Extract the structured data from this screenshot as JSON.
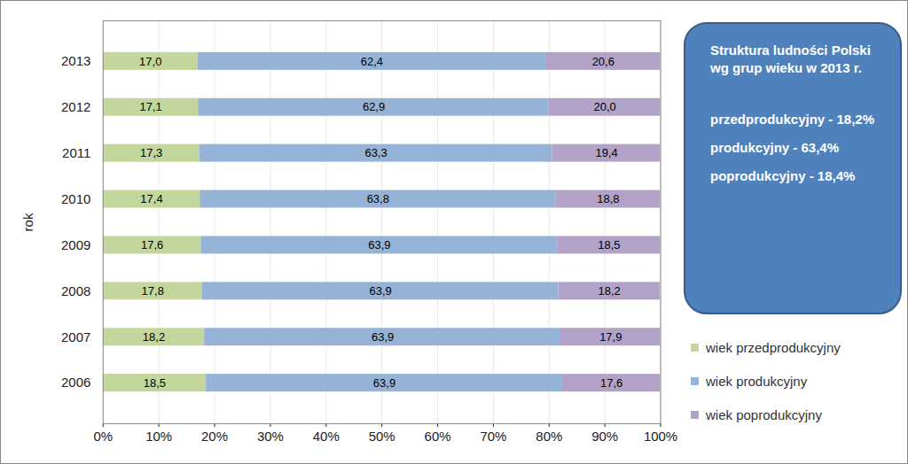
{
  "chart_data": {
    "type": "bar",
    "orientation": "horizontal",
    "stacked": true,
    "data_labels": true,
    "grid": true,
    "legend": "right",
    "ylabel": "rok",
    "categories": [
      "2013",
      "2012",
      "2011",
      "2010",
      "2009",
      "2008",
      "2007",
      "2006"
    ],
    "series": [
      {
        "name": "wiek przedprodukcyjny",
        "color": "#c3d69b",
        "values": [
          17.0,
          17.1,
          17.3,
          17.4,
          17.6,
          17.8,
          18.2,
          18.5
        ],
        "value_labels": [
          "17,0",
          "17,1",
          "17,3",
          "17,4",
          "17,6",
          "17,8",
          "18,2",
          "18,5"
        ]
      },
      {
        "name": "wiek produkcyjny",
        "color": "#95b3d7",
        "values": [
          62.4,
          62.9,
          63.3,
          63.8,
          63.9,
          63.9,
          63.9,
          63.9
        ],
        "value_labels": [
          "62,4",
          "62,9",
          "63,3",
          "63,8",
          "63,9",
          "63,9",
          "63,9",
          "63,9"
        ]
      },
      {
        "name": "wiek poprodukcyjny",
        "color": "#b3a2c7",
        "values": [
          20.6,
          20.0,
          19.4,
          18.8,
          18.5,
          18.2,
          17.9,
          17.6
        ],
        "value_labels": [
          "20,6",
          "20,0",
          "19,4",
          "18,8",
          "18,5",
          "18,2",
          "17,9",
          "17,6"
        ]
      }
    ],
    "xlim": [
      0,
      100
    ],
    "xticks": [
      {
        "value": 0,
        "label": "0%"
      },
      {
        "value": 10,
        "label": "10%"
      },
      {
        "value": 20,
        "label": "20%"
      },
      {
        "value": 30,
        "label": "30%"
      },
      {
        "value": 40,
        "label": "40%"
      },
      {
        "value": 50,
        "label": "50%"
      },
      {
        "value": 60,
        "label": "60%"
      },
      {
        "value": 70,
        "label": "70%"
      },
      {
        "value": 80,
        "label": "80%"
      },
      {
        "value": 90,
        "label": "90%"
      },
      {
        "value": 100,
        "label": "100%"
      }
    ],
    "annotation": {
      "title": "Struktura ludności Polski wg grup wieku w 2013 r.",
      "lines": [
        "przedprodukcyjny - 18,2%",
        "produkcyjny - 63,4%",
        "poprodukcyjny - 18,4%"
      ]
    }
  }
}
